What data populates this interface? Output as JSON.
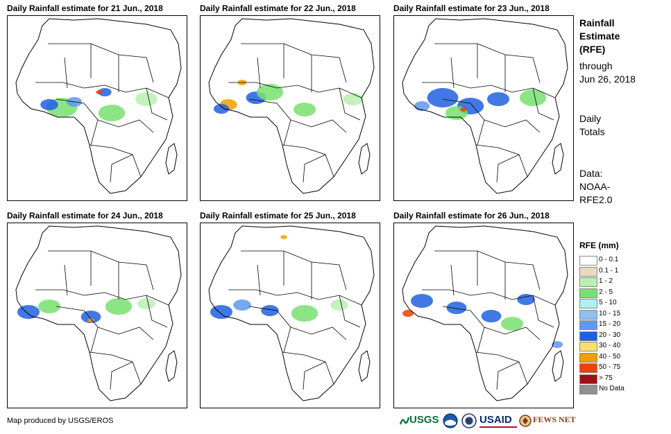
{
  "panels": [
    {
      "title": "Daily Rainfall estimate for 21 Jun., 2018"
    },
    {
      "title": "Daily Rainfall estimate for 22 Jun., 2018"
    },
    {
      "title": "Daily Rainfall estimate for 23 Jun., 2018"
    },
    {
      "title": "Daily Rainfall estimate for 24 Jun., 2018"
    },
    {
      "title": "Daily Rainfall estimate for 25 Jun., 2018"
    },
    {
      "title": "Daily Rainfall estimate for 26 Jun., 2018"
    }
  ],
  "sidebar": {
    "title_line1": "Rainfall",
    "title_line2": "Estimate",
    "title_line3": "(RFE)",
    "through_label": "through",
    "through_date": "Jun 26, 2018",
    "totals_line1": "Daily",
    "totals_line2": "Totals",
    "data_line1": "Data:",
    "data_line2": "NOAA-",
    "data_line3": "RFE2.0"
  },
  "legend": {
    "title": "RFE (mm)",
    "items": [
      {
        "label": "0 - 0.1",
        "color": "#ffffff"
      },
      {
        "label": "0.1 - 1",
        "color": "#e8d9bf"
      },
      {
        "label": "1 - 2",
        "color": "#b8f0b0"
      },
      {
        "label": "2 - 5",
        "color": "#78e070"
      },
      {
        "label": "5 - 10",
        "color": "#b0f0f0"
      },
      {
        "label": "10 - 15",
        "color": "#90c0f0"
      },
      {
        "label": "15 - 20",
        "color": "#6098f0"
      },
      {
        "label": "20 - 30",
        "color": "#2060e0"
      },
      {
        "label": "30 - 40",
        "color": "#f8e070"
      },
      {
        "label": "40 - 50",
        "color": "#f0a000"
      },
      {
        "label": "50 - 75",
        "color": "#f04000"
      },
      {
        "label": "> 75",
        "color": "#a01010"
      },
      {
        "label": "No Data",
        "color": "#909090"
      }
    ]
  },
  "footer": {
    "credit": "Map produced by USGS/EROS",
    "logo_usgs": "USGS",
    "logo_usaid": "USAID",
    "logo_fews": "FEWS NET"
  }
}
